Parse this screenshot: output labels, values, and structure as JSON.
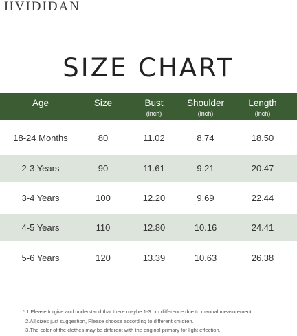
{
  "brand": "HVIDIDAN",
  "title": "SIZE CHART",
  "table": {
    "headers": [
      {
        "label": "Age",
        "unit": ""
      },
      {
        "label": "Size",
        "unit": ""
      },
      {
        "label": "Bust",
        "unit": "(inch)"
      },
      {
        "label": "Shoulder",
        "unit": "(inch)"
      },
      {
        "label": "Length",
        "unit": "(inch)"
      }
    ],
    "rows": [
      [
        "18-24 Months",
        "80",
        "11.02",
        "8.74",
        "18.50"
      ],
      [
        "2-3 Years",
        "90",
        "11.61",
        "9.21",
        "20.47"
      ],
      [
        "3-4 Years",
        "100",
        "12.20",
        "9.69",
        "22.44"
      ],
      [
        "4-5 Years",
        "110",
        "12.80",
        "10.16",
        "24.41"
      ],
      [
        "5-6 Years",
        "120",
        "13.39",
        "10.63",
        "26.38"
      ]
    ]
  },
  "notes": [
    "* 1.Please forgive and understand that there maybe 1-3 cm difference due to manual measurement.",
    "2.All sizes just suggestion, Please choose according to different children.",
    "3.The color of the clothes may be different with the original primary for light effection."
  ],
  "colors": {
    "header_bg": "#3c5c33",
    "shaded_row": "#dde4dc"
  }
}
